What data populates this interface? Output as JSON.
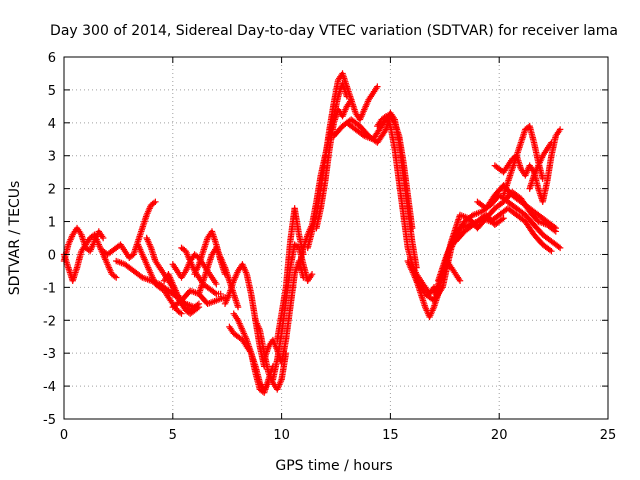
{
  "chart_data": {
    "type": "scatter",
    "title": "Day 300 of 2014, Sidereal Day-to-day VTEC variation (SDTVAR) for receiver lama",
    "xlabel": "GPS time / hours",
    "ylabel": "SDTVAR / TECUs",
    "xlim": [
      0,
      25
    ],
    "ylim": [
      -5,
      6
    ],
    "xticks": [
      0,
      5,
      10,
      15,
      20,
      25
    ],
    "yticks": [
      -5,
      -4,
      -3,
      -2,
      -1,
      0,
      1,
      2,
      3,
      4,
      5,
      6
    ],
    "grid": true,
    "legend": "none",
    "marker": "plus",
    "color": "#ff0000",
    "series": [
      {
        "x": [
          0.0,
          0.2,
          0.4,
          0.6,
          0.8,
          1.0,
          1.2,
          1.4,
          1.6,
          1.8,
          2.0,
          2.2,
          2.4
        ],
        "y": [
          0.0,
          -0.4,
          -0.8,
          -0.4,
          0.1,
          0.3,
          0.5,
          0.6,
          0.3,
          0.0,
          -0.3,
          -0.6,
          -0.7
        ]
      },
      {
        "x": [
          0.0,
          0.2,
          0.4,
          0.6,
          0.8,
          1.0,
          1.2,
          1.4,
          1.6,
          1.8
        ],
        "y": [
          -0.2,
          0.3,
          0.6,
          0.8,
          0.6,
          0.2,
          0.1,
          0.4,
          0.7,
          0.5
        ]
      },
      {
        "x": [
          1.8,
          2.0,
          2.2,
          2.4,
          2.6,
          2.8,
          3.0,
          3.2,
          3.4,
          3.6,
          3.8,
          4.0,
          4.2
        ],
        "y": [
          0.1,
          0.0,
          0.1,
          0.2,
          0.3,
          0.1,
          -0.1,
          0.0,
          0.4,
          0.8,
          1.2,
          1.5,
          1.6
        ]
      },
      {
        "x": [
          2.4,
          2.8,
          3.2,
          3.6,
          4.0,
          4.4,
          4.8,
          5.2,
          5.6,
          6.0
        ],
        "y": [
          -0.2,
          -0.3,
          -0.5,
          -0.7,
          -0.8,
          -0.9,
          -1.1,
          -1.3,
          -1.5,
          -1.6
        ]
      },
      {
        "x": [
          3.4,
          3.6,
          3.8,
          4.0,
          4.2,
          4.4,
          4.6,
          4.8,
          5.0,
          5.2,
          5.4
        ],
        "y": [
          0.3,
          0.0,
          -0.3,
          -0.6,
          -0.9,
          -1.0,
          -1.1,
          -1.3,
          -1.5,
          -1.7,
          -1.8
        ]
      },
      {
        "x": [
          3.8,
          4.0,
          4.2,
          4.4,
          4.6,
          4.8,
          5.0,
          5.2,
          5.4,
          5.6,
          5.8,
          6.0,
          6.2
        ],
        "y": [
          0.5,
          0.2,
          -0.2,
          -0.4,
          -0.6,
          -0.8,
          -1.0,
          -1.3,
          -1.5,
          -1.7,
          -1.8,
          -1.7,
          -1.6
        ]
      },
      {
        "x": [
          4.6,
          4.8,
          5.0,
          5.2,
          5.4,
          5.6,
          5.8,
          6.0,
          6.2
        ],
        "y": [
          -0.8,
          -0.6,
          -0.9,
          -1.2,
          -1.4,
          -1.6,
          -1.7,
          -1.6,
          -1.5
        ]
      },
      {
        "x": [
          5.0,
          5.2,
          5.4,
          5.6,
          5.8,
          6.0,
          6.2,
          6.4,
          6.6,
          6.8,
          7.0
        ],
        "y": [
          -0.3,
          -0.5,
          -0.7,
          -0.5,
          -0.2,
          0.0,
          -0.1,
          -0.3,
          -0.5,
          -0.7,
          -0.9
        ]
      },
      {
        "x": [
          5.0,
          5.4,
          5.8,
          6.2,
          6.6,
          7.0,
          7.4
        ],
        "y": [
          -1.6,
          -1.4,
          -1.1,
          -1.2,
          -1.5,
          -1.4,
          -1.3
        ]
      },
      {
        "x": [
          5.4,
          5.6,
          5.8,
          6.0,
          6.2,
          6.4,
          6.6,
          6.8,
          7.0,
          7.2
        ],
        "y": [
          0.2,
          0.1,
          -0.2,
          -0.5,
          -0.7,
          -0.9,
          -1.0,
          -1.1,
          -1.2,
          -1.2
        ]
      },
      {
        "x": [
          6.0,
          6.2,
          6.4,
          6.6,
          6.8,
          7.0,
          7.2,
          7.4
        ],
        "y": [
          -0.6,
          -0.3,
          0.1,
          0.5,
          0.7,
          0.3,
          -0.2,
          -0.6
        ]
      },
      {
        "x": [
          6.2,
          6.4,
          6.6,
          6.8,
          7.0,
          7.2,
          7.4,
          7.6,
          7.8,
          8.0
        ],
        "y": [
          -1.2,
          -0.8,
          -0.4,
          0.0,
          0.2,
          -0.1,
          -0.4,
          -0.8,
          -1.2,
          -1.6
        ]
      },
      {
        "x": [
          7.4,
          7.6,
          7.8,
          8.0,
          8.2,
          8.4,
          8.6,
          8.8,
          9.0,
          9.2
        ],
        "y": [
          -1.5,
          -1.2,
          -0.8,
          -0.5,
          -0.3,
          -0.6,
          -1.2,
          -2.0,
          -2.8,
          -3.4
        ]
      },
      {
        "x": [
          7.6,
          7.8,
          8.0,
          8.2,
          8.4,
          8.6,
          8.8,
          9.0,
          9.2,
          9.4
        ],
        "y": [
          -2.2,
          -2.4,
          -2.5,
          -2.6,
          -2.8,
          -3.0,
          -3.4,
          -3.9,
          -4.1,
          -3.9
        ]
      },
      {
        "x": [
          7.8,
          8.0,
          8.2,
          8.4,
          8.6,
          8.8,
          9.0,
          9.2,
          9.4,
          9.6
        ],
        "y": [
          -1.8,
          -2.0,
          -2.3,
          -2.6,
          -3.0,
          -3.6,
          -4.1,
          -4.2,
          -3.8,
          -3.4
        ]
      },
      {
        "x": [
          8.8,
          9.0,
          9.2,
          9.4,
          9.6,
          9.8,
          10.0,
          10.2
        ],
        "y": [
          -2.0,
          -2.3,
          -3.0,
          -3.6,
          -3.9,
          -4.1,
          -3.8,
          -3.0
        ]
      },
      {
        "x": [
          9.2,
          9.4,
          9.6,
          9.8,
          10.0,
          10.2,
          10.4,
          10.6,
          10.8,
          11.0
        ],
        "y": [
          -3.2,
          -2.8,
          -2.6,
          -2.9,
          -3.3,
          -2.6,
          -1.6,
          -0.6,
          -0.2,
          -0.7
        ]
      },
      {
        "x": [
          9.6,
          9.8,
          10.0,
          10.2,
          10.4,
          10.6,
          10.8,
          11.0,
          11.2,
          11.4
        ],
        "y": [
          -3.8,
          -3.2,
          -2.4,
          -1.4,
          -0.4,
          0.3,
          0.2,
          -0.3,
          -0.8,
          -0.6
        ]
      },
      {
        "x": [
          9.8,
          10.0,
          10.2,
          10.4,
          10.6,
          10.8,
          11.0
        ],
        "y": [
          -2.6,
          -1.8,
          -1.0,
          0.4,
          1.4,
          0.6,
          0.0
        ]
      },
      {
        "x": [
          10.8,
          11.0,
          11.2,
          11.4,
          11.6,
          11.8,
          12.0,
          12.2,
          12.4,
          12.6,
          12.8,
          13.0
        ],
        "y": [
          -0.4,
          0.2,
          0.6,
          0.9,
          1.6,
          2.4,
          3.0,
          3.6,
          4.2,
          4.8,
          5.2,
          4.8
        ]
      },
      {
        "x": [
          11.2,
          11.4,
          11.6,
          11.8,
          12.0,
          12.2,
          12.4,
          12.6,
          12.8,
          13.0,
          13.2
        ],
        "y": [
          0.2,
          0.7,
          1.2,
          2.0,
          2.9,
          3.8,
          4.6,
          5.3,
          5.5,
          5.1,
          4.7
        ]
      },
      {
        "x": [
          11.6,
          11.8,
          12.0,
          12.2,
          12.4,
          12.6,
          12.8,
          13.0,
          13.2,
          13.4,
          13.6,
          13.8,
          14.0,
          14.2,
          14.4
        ],
        "y": [
          0.8,
          1.4,
          2.2,
          3.2,
          4.0,
          4.4,
          4.2,
          4.5,
          4.7,
          4.3,
          4.1,
          4.4,
          4.7,
          4.9,
          5.1
        ]
      },
      {
        "x": [
          12.4,
          12.8,
          13.2,
          13.6,
          14.0,
          14.4,
          14.8,
          15.0,
          15.2,
          15.4,
          15.6,
          15.8,
          16.0
        ],
        "y": [
          3.6,
          3.9,
          4.1,
          3.9,
          3.6,
          3.4,
          3.8,
          4.2,
          4.0,
          3.6,
          2.8,
          1.8,
          0.8
        ]
      },
      {
        "x": [
          13.0,
          13.4,
          13.8,
          14.2,
          14.6,
          15.0,
          15.2,
          15.4,
          15.6,
          15.8,
          16.0,
          16.2
        ],
        "y": [
          4.0,
          3.8,
          3.6,
          3.5,
          3.9,
          4.3,
          4.1,
          3.4,
          2.4,
          1.4,
          0.4,
          -0.4
        ]
      },
      {
        "x": [
          14.4,
          14.6,
          14.8,
          15.0,
          15.2,
          15.4,
          15.6,
          15.8,
          16.0,
          16.2,
          16.4,
          16.6,
          16.8,
          17.0
        ],
        "y": [
          3.9,
          4.1,
          4.2,
          3.9,
          3.2,
          2.2,
          1.2,
          0.2,
          -0.3,
          -0.6,
          -0.8,
          -1.0,
          -1.2,
          -1.0
        ]
      },
      {
        "x": [
          15.8,
          16.0,
          16.2,
          16.4,
          16.6,
          16.8,
          17.0,
          17.2,
          17.4,
          17.6,
          17.8,
          18.0,
          18.2
        ],
        "y": [
          -0.2,
          -0.5,
          -0.8,
          -1.2,
          -1.6,
          -1.9,
          -1.6,
          -1.2,
          -0.6,
          -0.2,
          -0.4,
          -0.6,
          -0.8
        ]
      },
      {
        "x": [
          16.2,
          16.6,
          17.0,
          17.4,
          17.8,
          18.2,
          18.6,
          19.0,
          19.4,
          19.8,
          20.2
        ],
        "y": [
          -0.8,
          -1.2,
          -1.4,
          -1.0,
          0.2,
          0.8,
          0.9,
          1.0,
          1.2,
          0.9,
          1.1
        ]
      },
      {
        "x": [
          17.0,
          17.4,
          17.8,
          18.2,
          18.6,
          19.0,
          19.4,
          19.8,
          20.2,
          20.6,
          21.0,
          21.4,
          21.8,
          22.2,
          22.6
        ],
        "y": [
          -1.2,
          -0.6,
          0.4,
          1.2,
          1.1,
          0.8,
          1.1,
          1.4,
          1.6,
          1.9,
          1.7,
          1.3,
          1.0,
          0.9,
          0.7
        ]
      },
      {
        "x": [
          17.2,
          17.6,
          18.0,
          18.4,
          18.8,
          19.2,
          19.6,
          20.0,
          20.4,
          20.8,
          21.2,
          21.6,
          22.0,
          22.4,
          22.8
        ],
        "y": [
          -0.8,
          0.0,
          0.6,
          1.0,
          1.2,
          1.3,
          1.5,
          1.8,
          1.6,
          1.4,
          1.2,
          0.9,
          0.6,
          0.4,
          0.2
        ]
      },
      {
        "x": [
          18.0,
          18.4,
          18.8,
          19.2,
          19.6,
          20.0,
          20.4,
          20.8,
          21.2,
          21.6,
          22.0,
          22.4
        ],
        "y": [
          0.4,
          0.7,
          0.9,
          1.1,
          1.0,
          1.2,
          1.4,
          1.2,
          1.0,
          0.6,
          0.3,
          0.1
        ]
      },
      {
        "x": [
          19.0,
          19.4,
          19.8,
          20.2,
          20.6,
          21.0,
          21.4,
          21.8,
          22.2,
          22.6
        ],
        "y": [
          1.6,
          1.4,
          1.8,
          2.1,
          1.8,
          1.6,
          1.4,
          1.2,
          1.0,
          0.8
        ]
      },
      {
        "x": [
          19.8,
          20.0,
          20.2,
          20.4,
          20.6,
          20.8,
          21.0,
          21.2,
          21.4,
          21.6,
          21.8,
          22.0,
          22.2,
          22.4,
          22.6,
          22.8
        ],
        "y": [
          2.7,
          2.6,
          2.5,
          2.7,
          2.9,
          3.0,
          2.6,
          2.4,
          2.7,
          2.5,
          2.0,
          1.6,
          2.2,
          3.0,
          3.6,
          3.8
        ]
      },
      {
        "x": [
          20.2,
          20.4,
          20.6,
          20.8,
          21.0,
          21.2,
          21.4,
          21.6,
          21.8,
          22.0
        ],
        "y": [
          1.8,
          2.2,
          2.6,
          3.0,
          3.4,
          3.8,
          3.9,
          3.4,
          2.8,
          2.3
        ]
      },
      {
        "x": [
          21.4,
          21.6,
          21.8,
          22.0,
          22.2,
          22.4
        ],
        "y": [
          2.0,
          2.4,
          2.7,
          3.0,
          3.2,
          3.4
        ]
      }
    ]
  }
}
